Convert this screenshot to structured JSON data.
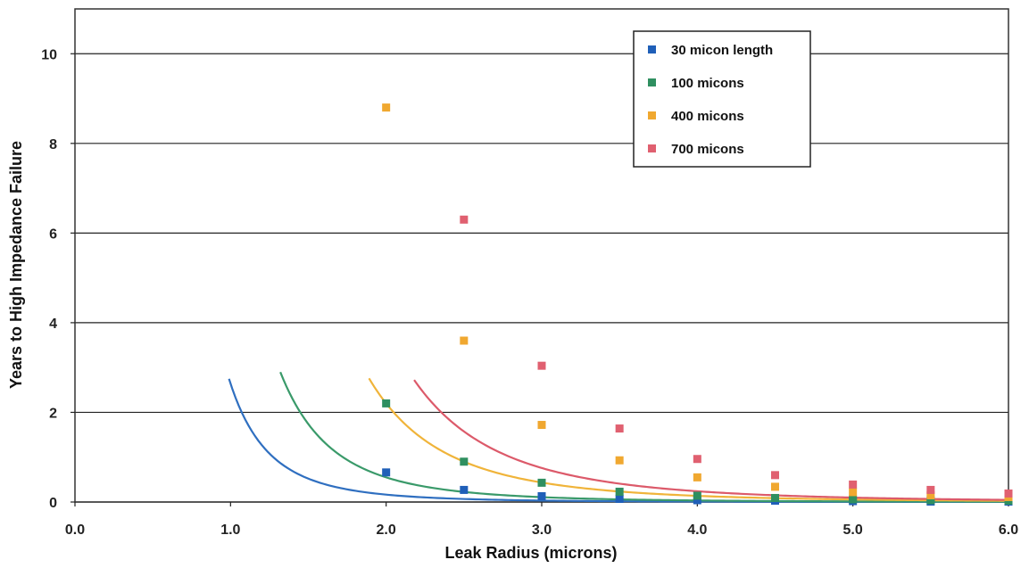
{
  "chart_data": {
    "type": "line",
    "title": "",
    "xlabel": "Leak Radius (microns)",
    "ylabel": "Years to High Impedance Failure",
    "xlim": [
      0,
      6
    ],
    "ylim": [
      0,
      11
    ],
    "x_ticks": [
      "0.0",
      "1.0",
      "2.0",
      "3.0",
      "4.0",
      "5.0",
      "6.0"
    ],
    "y_ticks": [
      "0",
      "2",
      "4",
      "6",
      "8",
      "10"
    ],
    "grid": "horizontal",
    "legend_position": "top-right",
    "series": [
      {
        "name": "30 micon length",
        "color": "#2f6fc0",
        "marker_color": "#1f5fb8",
        "curve_coefficient": 2.64,
        "x_start": 0.99,
        "markers": [
          [
            2.0,
            0.66
          ],
          [
            2.5,
            0.27
          ],
          [
            3.0,
            0.13
          ],
          [
            3.5,
            0.07
          ],
          [
            4.0,
            0.04
          ],
          [
            4.5,
            0.03
          ],
          [
            5.0,
            0.02
          ],
          [
            5.5,
            0.01
          ],
          [
            6.0,
            0.01
          ]
        ]
      },
      {
        "name": "100 micons",
        "color": "#3a9a6a",
        "marker_color": "#2f8f60",
        "curve_coefficient": 8.8,
        "x_start": 1.32,
        "markers": [
          [
            2.0,
            2.2
          ],
          [
            2.5,
            0.9
          ],
          [
            3.0,
            0.43
          ],
          [
            3.5,
            0.23
          ],
          [
            4.0,
            0.14
          ],
          [
            4.5,
            0.09
          ],
          [
            5.0,
            0.06
          ],
          [
            5.5,
            0.04
          ],
          [
            6.0,
            0.03
          ]
        ]
      },
      {
        "name": "400 micons",
        "color": "#f0b43a",
        "marker_color": "#f0a830",
        "curve_coefficient": 35.2,
        "x_start": 1.89,
        "markers": [
          [
            2.0,
            8.8
          ],
          [
            2.5,
            3.6
          ],
          [
            3.0,
            1.72
          ],
          [
            3.5,
            0.93
          ],
          [
            4.0,
            0.55
          ],
          [
            4.5,
            0.34
          ],
          [
            5.0,
            0.22
          ],
          [
            5.5,
            0.15
          ],
          [
            6.0,
            0.11
          ]
        ]
      },
      {
        "name": "700 micons",
        "color": "#dc5a6a",
        "marker_color": "#e06070",
        "curve_coefficient": 61.5,
        "x_start": 2.18,
        "markers": [
          [
            2.5,
            6.3
          ],
          [
            3.0,
            3.04
          ],
          [
            3.5,
            1.64
          ],
          [
            4.0,
            0.96
          ],
          [
            4.5,
            0.6
          ],
          [
            5.0,
            0.39
          ],
          [
            5.5,
            0.27
          ],
          [
            6.0,
            0.19
          ]
        ]
      }
    ]
  }
}
